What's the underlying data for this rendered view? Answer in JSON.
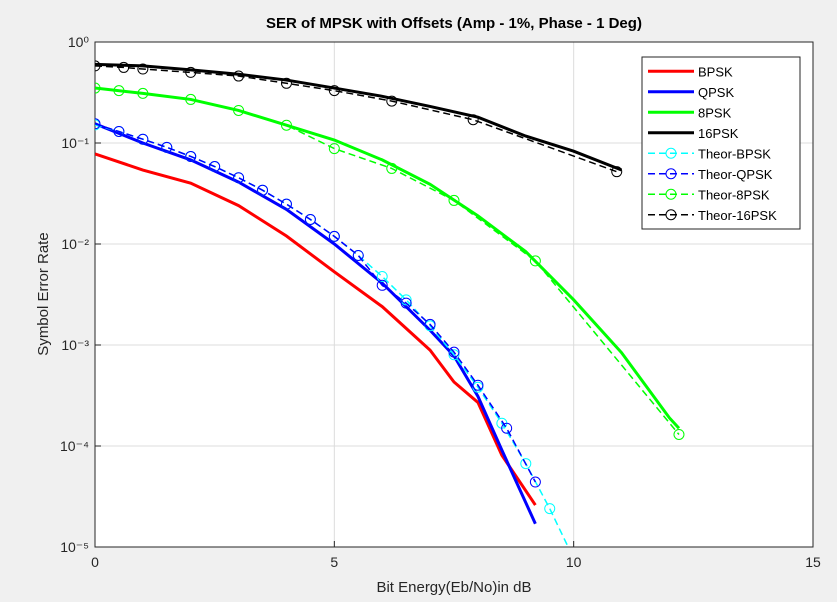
{
  "chart_data": {
    "type": "line",
    "title": "SER of MPSK with Offsets (Amp - 1%, Phase - 1 Deg)",
    "x_label": "Bit Energy(Eb/No)in dB",
    "y_label": "Symbol Error Rate",
    "xlim": [
      0,
      15
    ],
    "xticks": [
      0,
      5,
      10,
      15
    ],
    "ylim": [
      1e-05,
      1
    ],
    "log_y": true,
    "grid": true,
    "legend_position": "top-right",
    "yticks": [
      {
        "value": 1,
        "label": "10⁰"
      },
      {
        "value": 0.1,
        "label": "10⁻¹"
      },
      {
        "value": 0.01,
        "label": "10⁻²"
      },
      {
        "value": 0.001,
        "label": "10⁻³"
      },
      {
        "value": 0.0001,
        "label": "10⁻⁴"
      },
      {
        "value": 1e-05,
        "label": "10⁻⁵"
      }
    ],
    "series": [
      {
        "name": "BPSK",
        "color": "#ff0000",
        "dashed": false,
        "marker": "none",
        "x": [
          0,
          1,
          2,
          3,
          4,
          5,
          6,
          7,
          7.5,
          8,
          8.5,
          9.2
        ],
        "values": [
          0.078,
          0.054,
          0.04,
          0.024,
          0.012,
          0.0053,
          0.0024,
          0.00089,
          0.00043,
          0.00027,
          8.1e-05,
          2.6e-05
        ]
      },
      {
        "name": "QPSK",
        "color": "#0000ff",
        "dashed": false,
        "marker": "none",
        "x": [
          0,
          1,
          2,
          3,
          4,
          5,
          6,
          7,
          7.5,
          8,
          8.5,
          9.2
        ],
        "values": [
          0.155,
          0.1,
          0.068,
          0.041,
          0.022,
          0.01,
          0.0041,
          0.0014,
          0.00078,
          0.00031,
          9.1e-05,
          1.7e-05
        ]
      },
      {
        "name": "8PSK",
        "color": "#00ff00",
        "dashed": false,
        "marker": "none",
        "x": [
          0,
          1,
          2,
          3,
          4,
          5,
          6,
          7,
          8,
          9,
          10,
          11,
          12,
          12.2
        ],
        "values": [
          0.35,
          0.31,
          0.27,
          0.21,
          0.15,
          0.107,
          0.068,
          0.039,
          0.019,
          0.0084,
          0.0028,
          0.00084,
          0.00019,
          0.00015
        ]
      },
      {
        "name": "16PSK",
        "color": "#000000",
        "dashed": false,
        "marker": "none",
        "x": [
          0,
          1,
          2,
          3,
          4,
          5,
          6,
          7,
          8,
          9,
          10,
          11
        ],
        "values": [
          0.6,
          0.58,
          0.53,
          0.48,
          0.42,
          0.35,
          0.29,
          0.23,
          0.18,
          0.117,
          0.083,
          0.054
        ]
      },
      {
        "name": "Theor-BPSK",
        "color": "#00ffff",
        "dashed": true,
        "marker": "circle",
        "x": [
          0,
          0.5,
          1,
          1.5,
          2,
          2.5,
          3,
          3.5,
          4,
          4.5,
          5,
          5.5,
          6,
          6.5,
          7,
          7.5,
          8,
          8.5,
          9,
          9.5,
          10
        ],
        "values": [
          0.151,
          0.13,
          0.109,
          0.0906,
          0.0736,
          0.0585,
          0.0453,
          0.0341,
          0.0248,
          0.0175,
          0.0119,
          0.0077,
          0.00477,
          0.0028,
          0.00155,
          0.0008,
          0.000382,
          0.000168,
          6.7e-05,
          2.4e-05,
          7.7e-06
        ]
      },
      {
        "name": "Theor-QPSK",
        "color": "#0000ff",
        "dashed": true,
        "marker": "circle",
        "x": [
          0,
          0.5,
          1,
          1.5,
          2,
          2.5,
          3,
          3.5,
          4,
          4.5,
          5,
          5.5,
          6,
          6.5,
          7,
          7.5,
          8,
          8.6,
          9.2
        ],
        "values": [
          0.155,
          0.13,
          0.109,
          0.0906,
          0.0736,
          0.0585,
          0.0453,
          0.0341,
          0.0248,
          0.0175,
          0.0119,
          0.0077,
          0.0039,
          0.0026,
          0.0016,
          0.00085,
          0.0004,
          0.00015,
          4.4e-05
        ]
      },
      {
        "name": "Theor-8PSK",
        "color": "#00ff00",
        "dashed": true,
        "marker": "circle",
        "x": [
          0,
          0.5,
          1,
          2,
          3,
          4,
          5,
          6.2,
          7.5,
          9.2,
          12.2
        ],
        "values": [
          0.35,
          0.33,
          0.31,
          0.27,
          0.21,
          0.15,
          0.088,
          0.056,
          0.027,
          0.0068,
          0.00013
        ]
      },
      {
        "name": "Theor-16PSK",
        "color": "#000000",
        "dashed": true,
        "marker": "circle",
        "x": [
          0,
          0.6,
          1,
          2,
          3,
          4,
          5,
          6.2,
          7.9,
          10.9
        ],
        "values": [
          0.58,
          0.56,
          0.54,
          0.5,
          0.46,
          0.39,
          0.33,
          0.26,
          0.17,
          0.052
        ]
      }
    ]
  }
}
